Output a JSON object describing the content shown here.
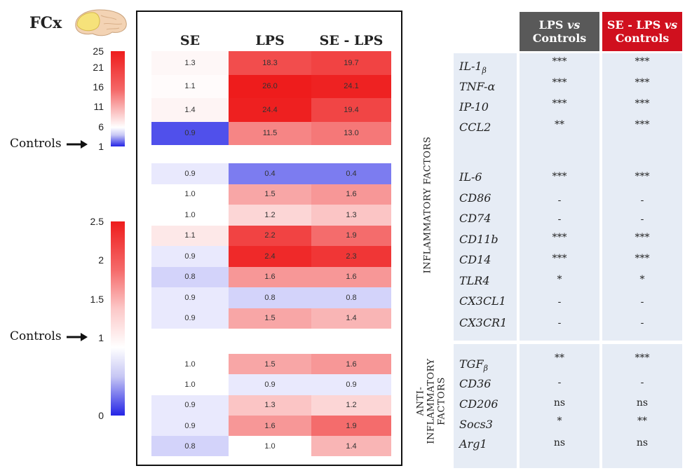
{
  "region_label": "FCx",
  "colorbar_top": {
    "ticks": [
      "25",
      "21",
      "16",
      "11",
      "6",
      "1"
    ],
    "controls_label": "Controls",
    "colors": {
      "high": "#ee1c1c",
      "mid": "#ffffff",
      "low": "#2424e6"
    }
  },
  "colorbar_bottom": {
    "ticks": [
      "2.5",
      "2",
      "1.5",
      "1",
      "0"
    ],
    "controls_label": "Controls"
  },
  "heatmap": {
    "columns": [
      "SE",
      "LPS",
      "SE - LPS"
    ],
    "groups": [
      {
        "rows": [
          [
            "1.3",
            "18.3",
            "19.7"
          ],
          [
            "1.1",
            "26.0",
            "24.1"
          ],
          [
            "1.4",
            "24.4",
            "19.4"
          ],
          [
            "0.9",
            "11.5",
            "13.0"
          ]
        ],
        "scale": "top"
      },
      {
        "rows": [
          [
            "0.9",
            "0.4",
            "0.4"
          ],
          [
            "1.0",
            "1.5",
            "1.6"
          ],
          [
            "1.0",
            "1.2",
            "1.3"
          ],
          [
            "1.1",
            "2.2",
            "1.9"
          ],
          [
            "0.9",
            "2.4",
            "2.3"
          ],
          [
            "0.8",
            "1.6",
            "1.6"
          ],
          [
            "0.9",
            "0.8",
            "0.8"
          ],
          [
            "0.9",
            "1.5",
            "1.4"
          ]
        ],
        "scale": "bottom"
      },
      {
        "rows": [
          [
            "1.0",
            "1.5",
            "1.6"
          ],
          [
            "1.0",
            "0.9",
            "0.9"
          ],
          [
            "0.9",
            "1.3",
            "1.2"
          ],
          [
            "0.9",
            "1.6",
            "1.9"
          ],
          [
            "0.8",
            "1.0",
            "1.4"
          ]
        ],
        "scale": "bottom"
      }
    ]
  },
  "comparison_headers": [
    {
      "pre": "LPS ",
      "vs": "vs",
      "post": "Controls",
      "color": "#595959"
    },
    {
      "pre": "SE - LPS ",
      "vs": "vs",
      "post": "Controls",
      "color": "#d0101e"
    }
  ],
  "sections": [
    {
      "label": "INFLAMMATORY FACTORS",
      "genes": [
        {
          "name": "IL-1",
          "sub": "β",
          "sig": [
            "***",
            "***"
          ]
        },
        {
          "name": "TNF-α",
          "sub": "",
          "sig": [
            "***",
            "***"
          ]
        },
        {
          "name": "IP-10",
          "sub": "",
          "sig": [
            "***",
            "***"
          ]
        },
        {
          "name": "CCL2",
          "sub": "",
          "sig": [
            "**",
            "***"
          ]
        },
        {
          "name": "IL-6",
          "sub": "",
          "sig": [
            "***",
            "***"
          ]
        },
        {
          "name": "CD86",
          "sub": "",
          "sig": [
            "-",
            "-"
          ]
        },
        {
          "name": "CD74",
          "sub": "",
          "sig": [
            "-",
            "-"
          ]
        },
        {
          "name": "CD11b",
          "sub": "",
          "sig": [
            "***",
            "***"
          ]
        },
        {
          "name": "CD14",
          "sub": "",
          "sig": [
            "***",
            "***"
          ]
        },
        {
          "name": "TLR4",
          "sub": "",
          "sig": [
            "*",
            "*"
          ]
        },
        {
          "name": "CX3CL1",
          "sub": "",
          "sig": [
            "-",
            "-"
          ]
        },
        {
          "name": "CX3CR1",
          "sub": "",
          "sig": [
            "-",
            "-"
          ]
        }
      ]
    },
    {
      "label_lines": [
        "ANTI-",
        "INFLAMMATORY",
        "FACTORS"
      ],
      "genes": [
        {
          "name": "TGF",
          "sub": "β",
          "sig": [
            "**",
            "***"
          ]
        },
        {
          "name": "CD36",
          "sub": "",
          "sig": [
            "-",
            "-"
          ]
        },
        {
          "name": "CD206",
          "sub": "",
          "sig": [
            "ns",
            "ns"
          ]
        },
        {
          "name": "Socs3",
          "sub": "",
          "sig": [
            "*",
            "**"
          ]
        },
        {
          "name": "Arg1",
          "sub": "",
          "sig": [
            "ns",
            "ns"
          ]
        }
      ]
    }
  ],
  "chart_data": {
    "type": "heatmap",
    "title": "",
    "columns": [
      "SE",
      "LPS",
      "SE - LPS"
    ],
    "rows": [
      "IL-1β",
      "TNF-α",
      "IP-10",
      "CCL2",
      "IL-6",
      "CD86",
      "CD74",
      "CD11b",
      "CD14",
      "TLR4",
      "CX3CL1",
      "CX3CR1",
      "TGFβ",
      "CD36",
      "CD206",
      "Socs3",
      "Arg1"
    ],
    "values": [
      [
        1.3,
        18.3,
        19.7
      ],
      [
        1.1,
        26.0,
        24.1
      ],
      [
        1.4,
        24.4,
        19.4
      ],
      [
        0.9,
        11.5,
        13.0
      ],
      [
        0.9,
        0.4,
        0.4
      ],
      [
        1.0,
        1.5,
        1.6
      ],
      [
        1.0,
        1.2,
        1.3
      ],
      [
        1.1,
        2.2,
        1.9
      ],
      [
        0.9,
        2.4,
        2.3
      ],
      [
        0.8,
        1.6,
        1.6
      ],
      [
        0.9,
        0.8,
        0.8
      ],
      [
        0.9,
        1.5,
        1.4
      ],
      [
        1.0,
        1.5,
        1.6
      ],
      [
        1.0,
        0.9,
        0.9
      ],
      [
        0.9,
        1.3,
        1.2
      ],
      [
        0.9,
        1.6,
        1.9
      ],
      [
        0.8,
        1.0,
        1.4
      ]
    ],
    "scales": [
      {
        "range": [
          1,
          25
        ],
        "rows": "IL-1β to CCL2"
      },
      {
        "range": [
          0,
          2.5
        ],
        "rows": "IL-6 to Arg1"
      }
    ],
    "significance": {
      "LPS vs Controls": [
        "***",
        "***",
        "***",
        "**",
        "***",
        "-",
        "-",
        "***",
        "***",
        "*",
        "-",
        "-",
        "**",
        "-",
        "ns",
        "*",
        "ns"
      ],
      "SE - LPS vs Controls": [
        "***",
        "***",
        "***",
        "***",
        "***",
        "-",
        "-",
        "***",
        "***",
        "*",
        "-",
        "-",
        "***",
        "-",
        "ns",
        "**",
        "ns"
      ]
    }
  }
}
